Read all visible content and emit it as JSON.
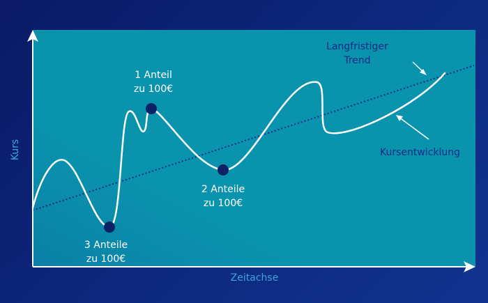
{
  "colors": {
    "background": "#0b1d6b",
    "panel": "#0a93ad",
    "curve": "#ffffff",
    "dot": "#0c2266",
    "trend": "#132a86"
  },
  "axes": {
    "y_label": "Kurs",
    "x_label": "Zeitachse"
  },
  "annotations": {
    "trend_line1": "Langfristiger",
    "trend_line2": "Trend",
    "curve": "Kursentwicklung",
    "point1_line1": "1 Anteil",
    "point1_line2": "zu 100€",
    "point2_line1": "2 Anteile",
    "point2_line2": "zu 100€",
    "point3_line1": "3 Anteile",
    "point3_line2": "zu 100€"
  }
}
